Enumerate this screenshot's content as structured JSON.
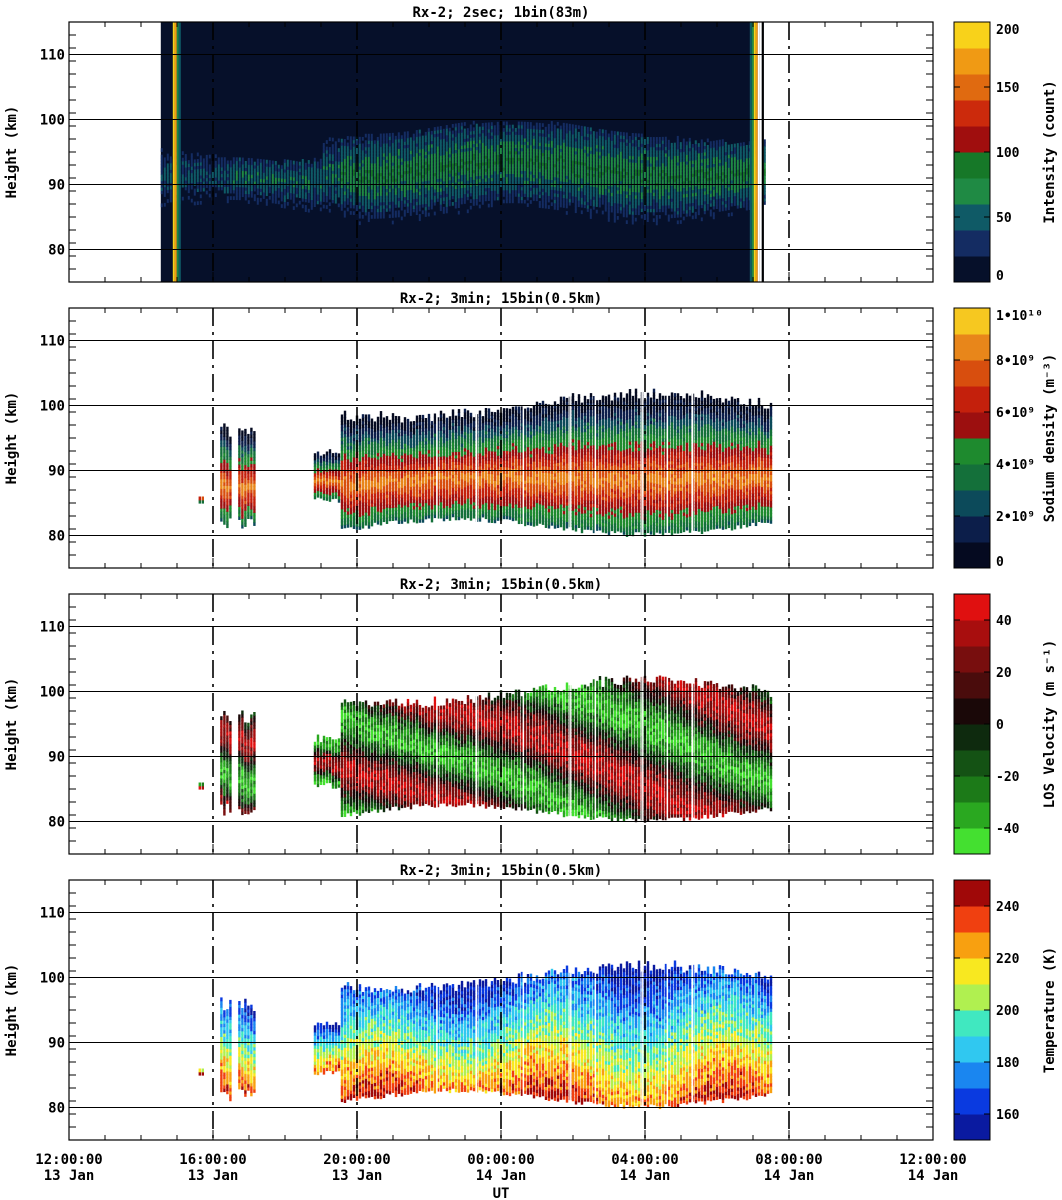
{
  "chart_data": [
    {
      "type": "heatmap",
      "title": "Rx-2;  2sec; 1bin(83m)",
      "ylabel": "Height (km)",
      "ylim": [
        75,
        115
      ],
      "yticks": [
        80,
        90,
        100,
        110
      ],
      "colorbar": {
        "label": "Intensity (count)",
        "range": [
          0,
          200
        ],
        "ticks": [
          "0",
          "50",
          "100",
          "150",
          "200"
        ],
        "tick_values": [
          0,
          50,
          100,
          150,
          200
        ],
        "colors": [
          "#06102a",
          "#142c62",
          "#0f5a66",
          "#1f8a44",
          "#167828",
          "#a00e0e",
          "#cc2a0c",
          "#e06a10",
          "#f09a14",
          "#f8d21a"
        ]
      },
      "data_coverage": {
        "start_hour": 14.55,
        "end_hour": 31.3,
        "layer_bottom_km": 82,
        "layer_top_km": 98
      }
    },
    {
      "type": "heatmap",
      "title": "Rx-2; 3min; 15bin(0.5km)",
      "ylabel": "Height (km)",
      "ylim": [
        75,
        115
      ],
      "yticks": [
        80,
        90,
        100,
        110
      ],
      "colorbar": {
        "label": "Sodium density (m⁻³)",
        "range": [
          0,
          10000000000
        ],
        "ticks": [
          "0",
          "2•10⁹",
          "4•10⁹",
          "6•10⁹",
          "8•10⁹",
          "1•10¹⁰"
        ],
        "tick_values": [
          0,
          2000000000,
          4000000000,
          6000000000,
          8000000000,
          10000000000
        ],
        "colors": [
          "#050a20",
          "#0c1e4a",
          "#0c4a5a",
          "#14703a",
          "#1e8a2e",
          "#9c0f0f",
          "#c4200c",
          "#d84e0e",
          "#e8861a",
          "#f6c820"
        ]
      },
      "data_coverage": {
        "start_hour": 15.6,
        "end_hour": 31.5,
        "layer_bottom_km": 80,
        "layer_top_km": 100
      }
    },
    {
      "type": "heatmap",
      "title": "Rx-2; 3min; 15bin(0.5km)",
      "ylabel": "Height (km)",
      "ylim": [
        75,
        115
      ],
      "yticks": [
        80,
        90,
        100,
        110
      ],
      "colorbar": {
        "label": "LOS Velocity (m s⁻¹)",
        "range": [
          -50,
          50
        ],
        "ticks": [
          "-40",
          "-20",
          "0",
          "20",
          "40"
        ],
        "tick_values": [
          -40,
          -20,
          0,
          20,
          40
        ],
        "colors": [
          "#44e030",
          "#2aa820",
          "#1c7a18",
          "#145214",
          "#0e2a0e",
          "#1a0808",
          "#4a0c0c",
          "#780e0e",
          "#a80e0e",
          "#e01010"
        ]
      },
      "data_coverage": {
        "start_hour": 15.6,
        "end_hour": 31.5,
        "layer_bottom_km": 80,
        "layer_top_km": 100
      }
    },
    {
      "type": "heatmap",
      "title": "Rx-2; 3min; 15bin(0.5km)",
      "ylabel": "Height (km)",
      "ylim": [
        75,
        115
      ],
      "yticks": [
        80,
        90,
        100,
        110
      ],
      "colorbar": {
        "label": "Temperature (K)",
        "range": [
          150,
          250
        ],
        "ticks": [
          "160",
          "180",
          "200",
          "220",
          "240"
        ],
        "tick_values": [
          160,
          180,
          200,
          220,
          240
        ],
        "colors": [
          "#0a1aa0",
          "#0a3ae0",
          "#1a86f0",
          "#30c8f0",
          "#40e8c0",
          "#b0f050",
          "#f8e820",
          "#f8a010",
          "#f04010",
          "#a00808"
        ]
      },
      "data_coverage": {
        "start_hour": 15.6,
        "end_hour": 31.5,
        "layer_bottom_km": 80,
        "layer_top_km": 100
      }
    }
  ],
  "x_axis": {
    "label": "UT",
    "range_hours": [
      12,
      36
    ],
    "tick_hours": [
      12,
      16,
      20,
      24,
      28,
      32,
      36
    ],
    "tick_labels": [
      {
        "time": "12:00:00",
        "date": "13 Jan"
      },
      {
        "time": "16:00:00",
        "date": "13 Jan"
      },
      {
        "time": "20:00:00",
        "date": "13 Jan"
      },
      {
        "time": "00:00:00",
        "date": "14 Jan"
      },
      {
        "time": "04:00:00",
        "date": "14 Jan"
      },
      {
        "time": "08:00:00",
        "date": "14 Jan"
      },
      {
        "time": "12:00:00",
        "date": "14 Jan"
      }
    ]
  }
}
